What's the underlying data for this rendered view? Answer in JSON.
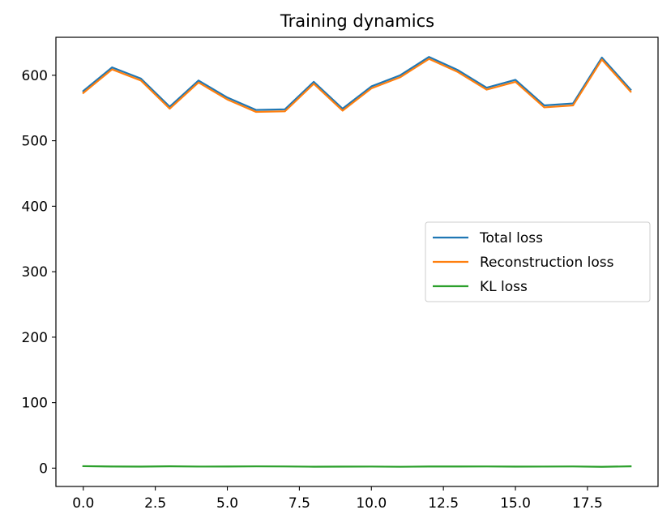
{
  "chart_data": {
    "type": "line",
    "title": "Training dynamics",
    "xlabel": "",
    "ylabel": "",
    "xlim": [
      -0.95,
      19.95
    ],
    "ylim": [
      -28,
      658
    ],
    "grid": false,
    "legend_position": "center-right",
    "x": [
      0,
      1,
      2,
      3,
      4,
      5,
      6,
      7,
      8,
      9,
      10,
      11,
      12,
      13,
      14,
      15,
      16,
      17,
      18,
      19
    ],
    "x_ticks": [
      0,
      2.5,
      5,
      7.5,
      10,
      12.5,
      15,
      17.5
    ],
    "x_tick_labels": [
      "0.0",
      "2.5",
      "5.0",
      "7.5",
      "10.0",
      "12.5",
      "15.0",
      "17.5"
    ],
    "y_ticks": [
      0,
      100,
      200,
      300,
      400,
      500,
      600
    ],
    "y_tick_labels": [
      "0",
      "100",
      "200",
      "300",
      "400",
      "500",
      "600"
    ],
    "series": [
      {
        "name": "Total loss",
        "color": "#1f77b4",
        "values": [
          576,
          612,
          595,
          552,
          592,
          566,
          547,
          548,
          590,
          549,
          583,
          600,
          628,
          608,
          581,
          593,
          554,
          557,
          627,
          578
        ]
      },
      {
        "name": "Reconstruction loss",
        "color": "#ff7f0e",
        "values": [
          573,
          609,
          592,
          549,
          589,
          563,
          544,
          545,
          587,
          546,
          580,
          597,
          625,
          605,
          578,
          590,
          551,
          554,
          624,
          575
        ]
      },
      {
        "name": "KL loss",
        "color": "#2ca02c",
        "values": [
          3,
          2.5,
          2.3,
          2.8,
          2.4,
          2.5,
          2.7,
          2.6,
          2.2,
          2.3,
          2.4,
          2.1,
          2.5,
          2.5,
          2.6,
          2.3,
          2.4,
          2.6,
          2.0,
          2.8
        ]
      }
    ]
  }
}
